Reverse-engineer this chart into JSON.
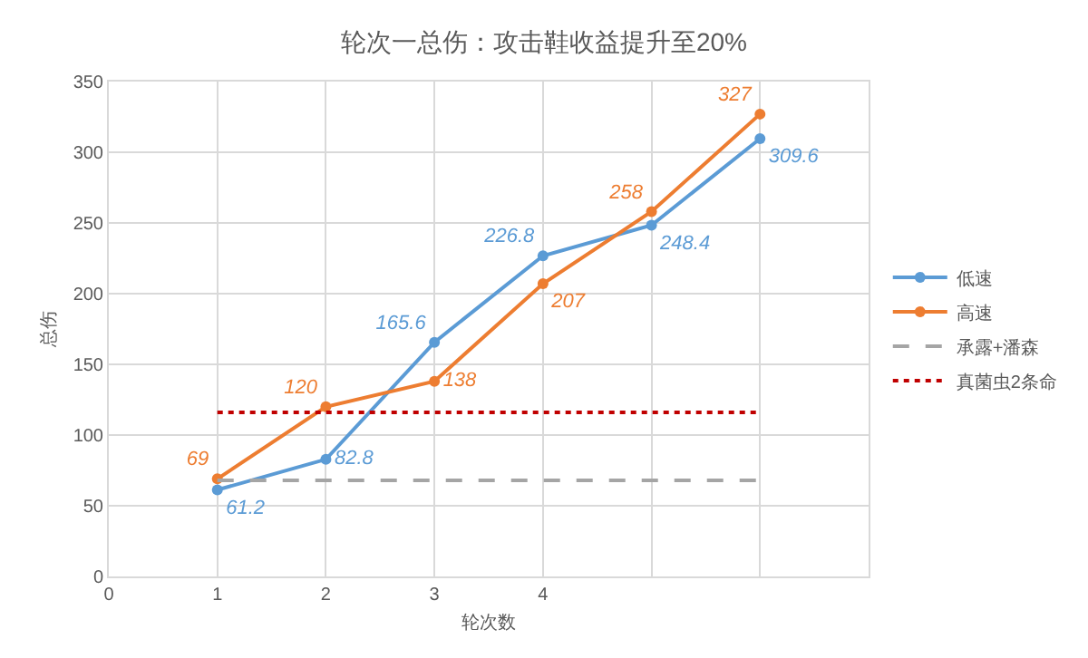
{
  "chart_data": {
    "type": "line",
    "title": "轮次一总伤：攻击鞋收益提升至20%",
    "xlabel": "轮次数",
    "ylabel": "总伤",
    "x": [
      1,
      2,
      3,
      4,
      5,
      6
    ],
    "series": [
      {
        "name": "低速",
        "color": "#5b9bd5",
        "marker": "circle",
        "values": [
          61.2,
          82.8,
          165.6,
          226.8,
          248.4,
          309.6
        ],
        "value_labels": [
          "61.2",
          "82.8",
          "165.6",
          "226.8",
          "248.4",
          "309.6"
        ]
      },
      {
        "name": "高速",
        "color": "#ed7d31",
        "marker": "circle",
        "values": [
          69,
          120,
          138,
          207,
          258,
          327
        ],
        "value_labels": [
          "69",
          "120",
          "138",
          "207",
          "258",
          "327"
        ]
      },
      {
        "name": "承露+潘森",
        "color": "#a5a5a5",
        "marker": "none",
        "line_style": "dashed",
        "values": [
          68,
          68,
          68,
          68,
          68,
          68
        ]
      },
      {
        "name": "真菌虫2条命",
        "color": "#c00000",
        "marker": "none",
        "line_style": "dotted",
        "values": [
          116,
          116,
          116,
          116,
          116,
          116
        ]
      }
    ],
    "xlim": [
      0,
      7
    ],
    "xticks": [
      0,
      1,
      2,
      3,
      4,
      {
        "value": 5,
        "label": null
      },
      {
        "value": 6,
        "label": null
      },
      {
        "value": 7,
        "label": null
      }
    ],
    "ylim": [
      0,
      350
    ],
    "yticks": [
      0,
      50,
      100,
      150,
      200,
      250,
      300,
      350
    ],
    "grid": true,
    "legend": "right"
  }
}
